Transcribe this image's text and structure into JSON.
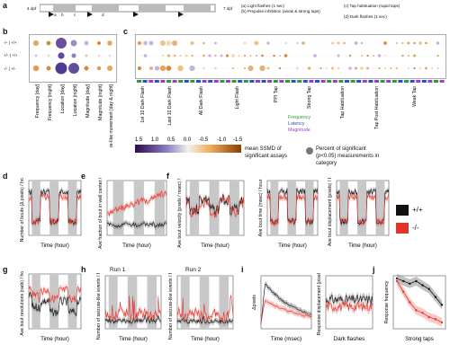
{
  "figure": {
    "panel_labels": [
      "a",
      "b",
      "c",
      "d",
      "e",
      "f",
      "g",
      "h",
      "i",
      "j"
    ],
    "panel_a": {
      "start_label": "4 dpf",
      "end_label": "7 dpf",
      "markers": [
        "a",
        "b",
        "c",
        "d"
      ],
      "legend": [
        "(a) Light flashes (1 sec)",
        "(b) Prepulse inhibition (weak & strong taps)",
        "(c) Tap habituation (rapid taps)",
        "(d) Dark flashes (1 sec)"
      ]
    },
    "panel_b": {
      "row_labels": [
        "-/- | +/+",
        "+/- | +/+",
        "-/- | +/-"
      ],
      "col_labels": [
        "Frequency [day]",
        "Frequency [night]",
        "Location [day]",
        "Location [night]",
        "Magnitude [day]",
        "Magnitude [night]",
        "Seizure-like movement [day & night]"
      ]
    },
    "panel_c": {
      "group_labels": [
        "1st 10 Dark Flash",
        "Last 10 Dark Flash",
        "All Dark Flash",
        "Light Flash",
        "PPI Tap",
        "Strong Tap",
        "Tap Habituation",
        "Tap Post Habituation",
        "Weak Tap"
      ],
      "category_legend": [
        "Frequency",
        "Latency",
        "Magnitude"
      ],
      "category_colors": {
        "Frequency": "#2a9d3a",
        "Latency": "#2b4fc9",
        "Magnitude": "#9b3fc2"
      }
    },
    "colorbar": {
      "ticks": [
        "1.5",
        "1.0",
        "0.5",
        "0.0",
        "-0.5",
        "-1.0",
        "-1.5"
      ],
      "title_line1": "mean SSMD of",
      "title_line2": "significant assays",
      "size_legend": [
        "Percent of significant",
        "(p<0.05) measurements in",
        "category"
      ]
    },
    "genotype_legend": {
      "wt": "+/+",
      "mut": "-/-",
      "wt_color": "#111111",
      "mut_color": "#e2332a"
    },
    "panel_d": {
      "ylabel": "Number of bouts (Δ pixels) / hour",
      "xlabel": "Time (hour)"
    },
    "panel_e": {
      "ylabel": "Ave fraction of bout in well center / hour",
      "xlabel": "Time (hour)"
    },
    "panel_f": {
      "ylabel1": "Ave bout velocity (pixels / msec) / hour",
      "ylabel2": "Ave bout time (msec) / hour",
      "ylabel3": "Ave bout displacement (pixels) / hour",
      "xlabel": "Time (hour)"
    },
    "panel_g": {
      "ylabel": "Ave bout revolutions (rads) / hour",
      "xlabel": "Time (hour)"
    },
    "panel_h": {
      "run1": "Run 1",
      "run2": "Run 2",
      "ylabel1": "Number of seizure-like events / hour",
      "ylabel2": "Number of seizure-like events / hour",
      "xlabel": "Time (hour)"
    },
    "panel_i": {
      "ylabel1": "Δpixels",
      "xlabel1": "Time (msec)",
      "ylabel2": "Response displacement (pixels)",
      "xlabel2": "Dark flashes"
    },
    "panel_j": {
      "ylabel": "Response frequency",
      "xlabel": "Strong taps"
    }
  }
}
